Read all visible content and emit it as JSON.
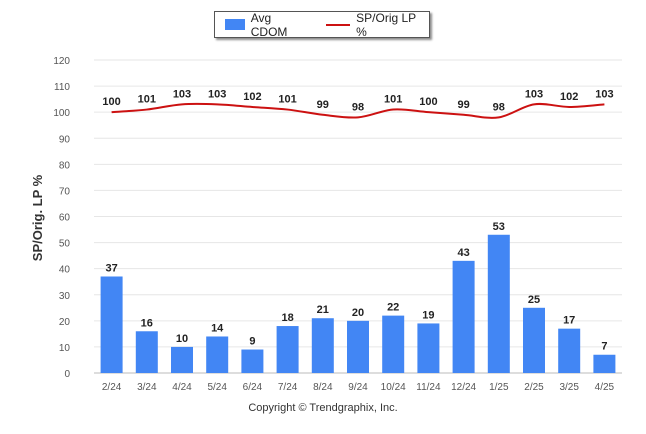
{
  "chart_data": {
    "type": "bar+line",
    "ylabel": "SP/Orig. LP %",
    "ylim": [
      0,
      120
    ],
    "yticks": [
      0,
      10,
      20,
      30,
      40,
      50,
      60,
      70,
      80,
      90,
      100,
      110,
      120
    ],
    "grid": true,
    "legend_position": "top-center",
    "categories": [
      "2/24",
      "3/24",
      "4/24",
      "5/24",
      "6/24",
      "7/24",
      "8/24",
      "9/24",
      "10/24",
      "11/24",
      "12/24",
      "1/25",
      "2/25",
      "3/25",
      "4/25"
    ],
    "series": [
      {
        "name": "Avg CDOM",
        "type": "bar",
        "color": "#4286f4",
        "values": [
          37,
          16,
          10,
          14,
          9,
          18,
          21,
          20,
          22,
          19,
          43,
          53,
          25,
          17,
          7
        ]
      },
      {
        "name": "SP/Orig LP %",
        "type": "line",
        "color": "#cc1111",
        "values": [
          100,
          101,
          103,
          103,
          102,
          101,
          99,
          98,
          101,
          100,
          99,
          98,
          103,
          102,
          103
        ]
      }
    ]
  },
  "footer": {
    "copyright": "Copyright © Trendgraphix, Inc."
  }
}
